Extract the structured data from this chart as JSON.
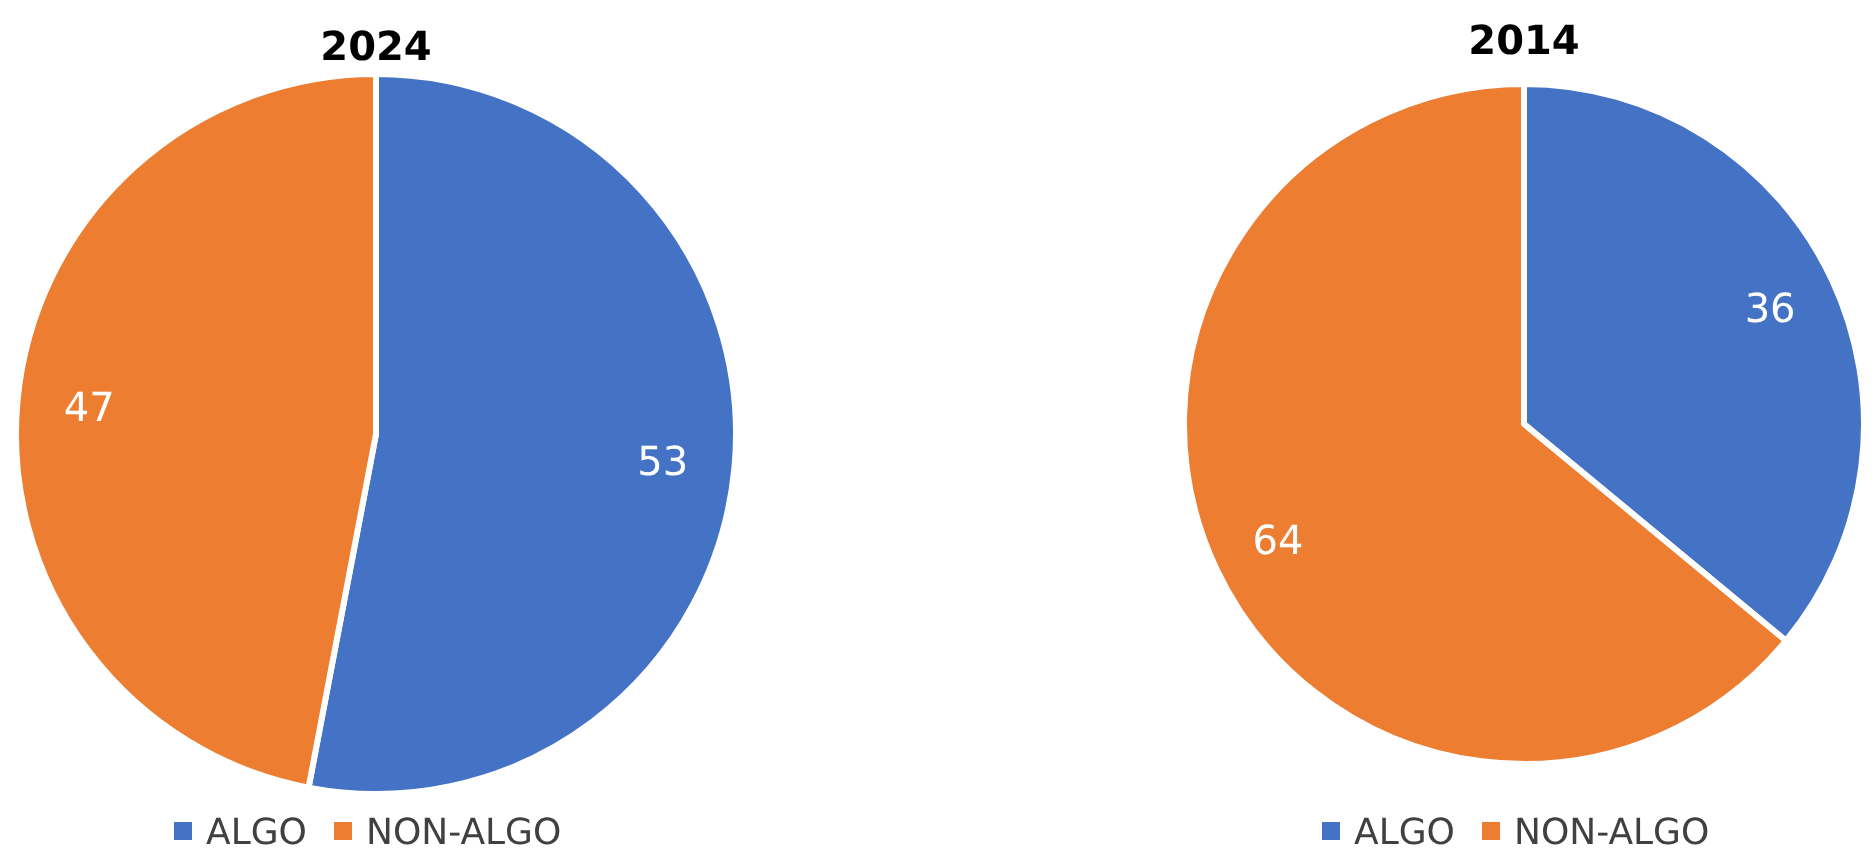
{
  "chart_data": [
    {
      "type": "pie",
      "title": "2024",
      "categories": [
        "ALGO",
        "NON-ALGO"
      ],
      "values": [
        53,
        47
      ],
      "colors": [
        "#4472c4",
        "#ed7d31"
      ],
      "data_labels": true,
      "legend": "bottom"
    },
    {
      "type": "pie",
      "title": "2014",
      "categories": [
        "ALGO",
        "NON-ALGO"
      ],
      "values": [
        36,
        64
      ],
      "colors": [
        "#4472c4",
        "#ed7d31"
      ],
      "data_labels": true,
      "legend": "bottom"
    }
  ]
}
